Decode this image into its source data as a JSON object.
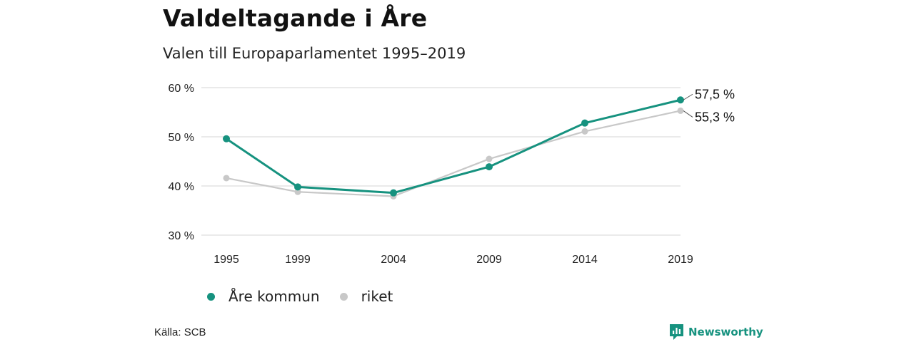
{
  "title": "Valdeltagande i Åre",
  "subtitle": "Valen till Europaparlamentet 1995–2019",
  "source": "Källa: SCB",
  "brand": "Newsworthy",
  "colors": {
    "are": "#16927f",
    "riket": "#c8c8c8",
    "grid": "#dddddd",
    "brand": "#16927f"
  },
  "chart_data": {
    "type": "line",
    "x": [
      1995,
      1999,
      2004,
      2009,
      2014,
      2019
    ],
    "xticklabels": [
      "1995",
      "1999",
      "2004",
      "2009",
      "2014",
      "2019"
    ],
    "ylim": [
      30,
      60
    ],
    "yticks": [
      30,
      40,
      50,
      60
    ],
    "yticklabels": [
      "30 %",
      "40 %",
      "50 %",
      "60 %"
    ],
    "grid": true,
    "legend": "bottom",
    "series": [
      {
        "name": "Åre kommun",
        "values": [
          49.6,
          39.8,
          38.6,
          43.9,
          52.8,
          57.5
        ],
        "end_label": "57,5 %"
      },
      {
        "name": "riket",
        "values": [
          41.6,
          38.8,
          37.9,
          45.5,
          51.1,
          55.3
        ],
        "end_label": "55,3 %"
      }
    ]
  }
}
